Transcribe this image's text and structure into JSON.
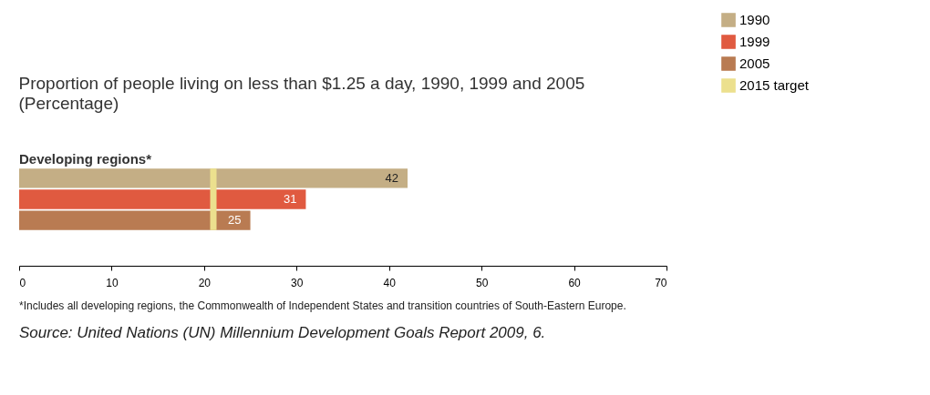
{
  "chart_data": {
    "type": "bar",
    "orientation": "horizontal",
    "title": "Proportion of people living on less than $1.25 a day, 1990, 1999 and 2005",
    "subtitle": "(Percentage)",
    "categories": [
      "Developing regions*"
    ],
    "series": [
      {
        "name": "1990",
        "color": "#c4ae85",
        "values": [
          42
        ]
      },
      {
        "name": "1999",
        "color": "#e05a40",
        "values": [
          31
        ]
      },
      {
        "name": "2005",
        "color": "#b97b52",
        "values": [
          25
        ]
      }
    ],
    "ref_lines": [
      {
        "axis": "x",
        "value": 21,
        "label": "2015 target",
        "color": "#ece08e"
      }
    ],
    "xlim": [
      0,
      70
    ],
    "xticks": [
      0,
      10,
      20,
      30,
      40,
      50,
      60,
      70
    ],
    "data_labels": true,
    "legend": "top right",
    "annotations": [
      "*Includes all developing regions, the Commonwealth of Independent States and transition countries of South-Eastern Europe.",
      "Source: United Nations (UN) Millennium Development Goals Report 2009, 6."
    ]
  }
}
